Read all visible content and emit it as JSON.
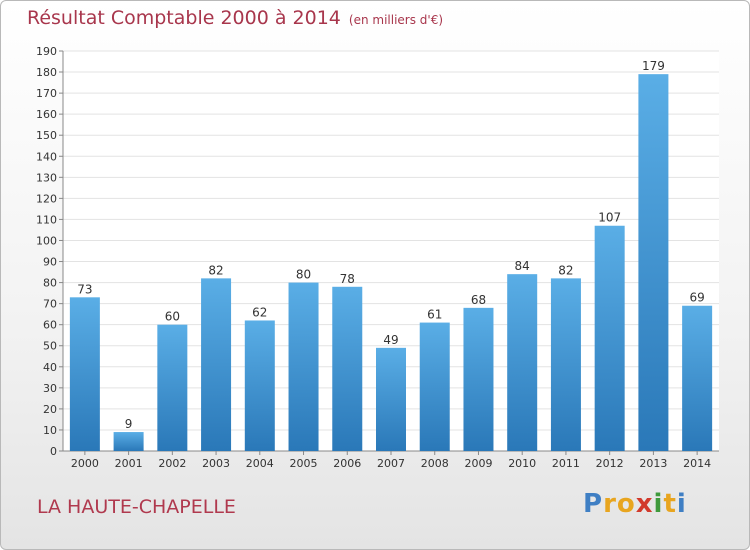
{
  "chart_data": {
    "type": "bar",
    "title": "Résultat Comptable 2000 à 2014",
    "subtitle": "(en milliers d'€)",
    "categories": [
      "2000",
      "2001",
      "2002",
      "2003",
      "2004",
      "2005",
      "2006",
      "2007",
      "2008",
      "2009",
      "2010",
      "2011",
      "2012",
      "2013",
      "2014"
    ],
    "values": [
      73,
      9,
      60,
      82,
      62,
      80,
      78,
      49,
      61,
      68,
      84,
      82,
      107,
      179,
      69
    ],
    "xlabel": "",
    "ylabel": "",
    "ylim": [
      0,
      190
    ],
    "ytick_step": 10,
    "grid": true,
    "bar_color_top": "#5aaee6",
    "bar_color_bottom": "#2a78b8"
  },
  "commune_name": "LA HAUTE-CHAPELLE",
  "logo": {
    "letters": [
      "P",
      "r",
      "o",
      "x",
      "i",
      "t",
      "i"
    ],
    "colors": [
      "#3f7fc4",
      "#e8a51f",
      "#e8a51f",
      "#d23a2c",
      "#3f9a3c",
      "#e8a51f",
      "#3f7fc4"
    ]
  }
}
